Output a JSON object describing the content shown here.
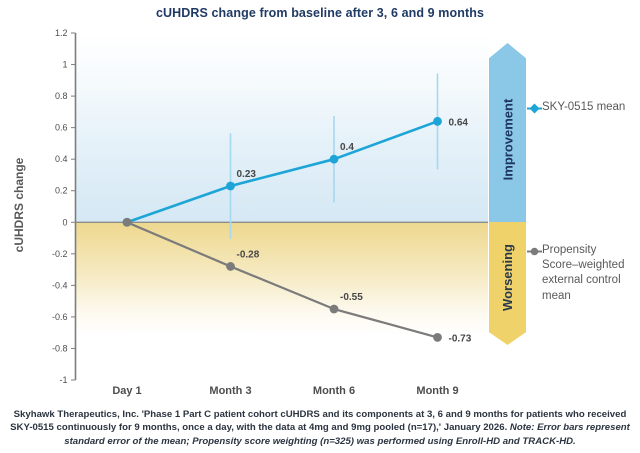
{
  "title": "cUHDRS change from baseline after 3, 6 and 9 months",
  "chart_data": {
    "type": "line",
    "categories": [
      "Day 1",
      "Month 3",
      "Month 6",
      "Month 9"
    ],
    "ylabel": "cUHDRS change",
    "xlabel": "",
    "ylim": [
      -1,
      1.2
    ],
    "ytick_labels": [
      "1.2",
      "1",
      "0.8",
      "0.6",
      "0.4",
      "0.2",
      "0",
      "-0.2",
      "-0.4",
      "-0.6",
      "-0.8",
      "-1"
    ],
    "yticks": [
      1.2,
      1,
      0.8,
      0.6,
      0.4,
      0.2,
      0,
      -0.2,
      -0.4,
      -0.6,
      -0.8,
      -1
    ],
    "grid": false,
    "legend_position": "right",
    "background_bands": {
      "positive_color": "#d5e8f4",
      "negative_color": "#eed88e"
    },
    "series": [
      {
        "name": "SKY-0515 mean",
        "color": "#1da5d8",
        "error_color": "#a6d8ee",
        "marker": "diamond",
        "values": [
          0,
          0.23,
          0.4,
          0.64
        ],
        "value_labels": [
          "",
          "0.23",
          "0.4",
          "0.64"
        ],
        "errors": [
          0,
          0.33,
          0.27,
          0.3
        ],
        "label_pos": [
          "none",
          "above",
          "above",
          "right"
        ]
      },
      {
        "name": "Propensity Score–weighted external control mean",
        "color": "#7b7b7b",
        "error_color": "#bbbbbb",
        "marker": "circle",
        "values": [
          0,
          -0.28,
          -0.55,
          -0.73
        ],
        "value_labels": [
          "",
          "-0.28",
          "-0.55",
          "-0.73"
        ],
        "errors": [
          0,
          0,
          0,
          0
        ],
        "label_pos": [
          "none",
          "above",
          "above",
          "right"
        ]
      }
    ]
  },
  "annotations": {
    "improvement": "Improvement",
    "worsening": "Worsening"
  },
  "legend": [
    {
      "label": "SKY-0515 mean",
      "color": "#1da5d8",
      "marker": "diamond"
    },
    {
      "label": "Propensity Score–weighted external control mean",
      "color": "#7b7b7b",
      "marker": "circle"
    }
  ],
  "footer": {
    "main": "Skyhawk Therapeutics, Inc. 'Phase 1 Part C patient cohort cUHDRS and its components at 3, 6 and 9 months for patients who received SKY-0515 continuously for 9 months, once a day, with the data at 4mg and 9mg pooled (n=17),' January 2026. ",
    "note": "Note: Error bars represent standard error of the mean; Propensity score weighting (n=325) was performed using Enroll-HD and TRACK-HD."
  },
  "colors": {
    "title": "#1f3a64",
    "axis": "#7d7d7d",
    "zero_line": "#8c8c8c",
    "tick_label": "#4d4d4d",
    "value_label": "#474747",
    "x_label": "#4d4d4d",
    "improvement_arrow": "#8bc7e6",
    "worsening_arrow": "#efd269"
  }
}
